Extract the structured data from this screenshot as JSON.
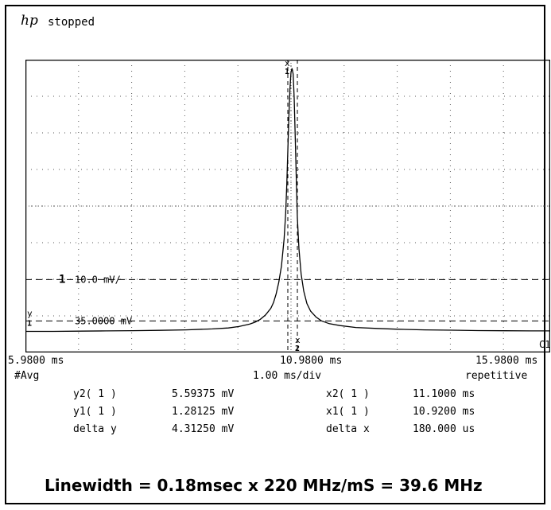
{
  "header": {
    "logo": "hp",
    "status": "stopped"
  },
  "chart_data": {
    "type": "line",
    "x_unit": "ms",
    "xlim": [
      5.98,
      15.98
    ],
    "ylim": [
      -2,
      28.5
    ],
    "x": [
      5.98,
      6.5,
      7.0,
      7.5,
      8.0,
      8.5,
      9.0,
      9.5,
      9.8,
      10.0,
      10.2,
      10.3,
      10.4,
      10.5,
      10.6,
      10.65,
      10.7,
      10.75,
      10.8,
      10.85,
      10.88,
      10.9,
      10.92,
      10.94,
      10.96,
      10.98,
      11.0,
      11.02,
      11.04,
      11.06,
      11.08,
      11.1,
      11.13,
      11.17,
      11.22,
      11.28,
      11.35,
      11.45,
      11.55,
      11.7,
      11.9,
      12.2,
      12.6,
      13.0,
      13.5,
      14.0,
      14.5,
      15.0,
      15.5,
      15.98
    ],
    "values": [
      0.2,
      0.2,
      0.22,
      0.25,
      0.27,
      0.3,
      0.35,
      0.45,
      0.55,
      0.7,
      0.95,
      1.15,
      1.45,
      1.9,
      2.6,
      3.2,
      4.1,
      5.3,
      7.0,
      9.8,
      12.5,
      15.5,
      19.0,
      22.5,
      25.5,
      27.2,
      27.6,
      27.0,
      24.5,
      20.5,
      16.0,
      12.0,
      8.8,
      6.2,
      4.4,
      3.1,
      2.3,
      1.7,
      1.3,
      1.0,
      0.8,
      0.6,
      0.5,
      0.42,
      0.35,
      0.32,
      0.28,
      0.26,
      0.25,
      0.25
    ],
    "x_axis": {
      "left": "5.9800 ms",
      "center": "10.9800 ms",
      "right": "15.9800 ms"
    },
    "acq_mode": "#Avg",
    "timebase": "1.00 ms/div",
    "trigger_mode": "repetitive",
    "channel_marker": "1",
    "vertical_scale": "10.0 mV/",
    "offset": "35.0000 mV",
    "trigger_label": "C1",
    "cursor_y1_mv": 1.28125,
    "cursor_y2_mv": 5.59375,
    "cursor_x1_ms": 10.92,
    "cursor_x2_ms": 11.1,
    "marker_labels": {
      "x1": "x",
      "x2": "x",
      "x1_num": "1",
      "x2_num": "2",
      "y1": "y",
      "y1_num": "1"
    },
    "grid": true,
    "measurements": [
      {
        "label": "y2( 1 )",
        "value": "5.59375 mV",
        "label2": "x2( 1 )",
        "value2": "11.1000 ms"
      },
      {
        "label": "y1( 1 )",
        "value": "1.28125 mV",
        "label2": "x1( 1 )",
        "value2": "10.9200 ms"
      },
      {
        "label": "delta y",
        "value": "4.31250 mV",
        "label2": "delta x",
        "value2": "180.000 us"
      }
    ]
  },
  "caption": "Linewidth = 0.18msec x 220 MHz/mS = 39.6 MHz"
}
